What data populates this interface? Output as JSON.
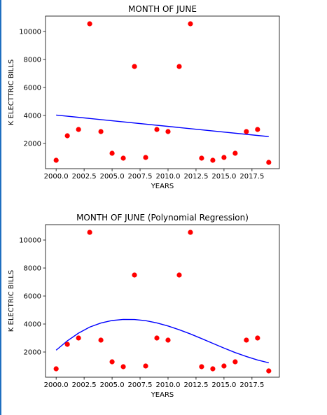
{
  "chart_data": [
    {
      "type": "scatter",
      "title": "MONTH OF JUNE",
      "xlabel": "YEARS",
      "ylabel": "K ELECTTRIC BILLS",
      "xlim": [
        1999.05,
        2019.95
      ],
      "ylim": [
        200,
        11100
      ],
      "xticks": [
        2000.0,
        2002.5,
        2005.0,
        2007.5,
        2010.0,
        2012.5,
        2015.0,
        2017.5
      ],
      "xtick_labels": [
        "2000.0",
        "2002.5",
        "2005.0",
        "2007.5",
        "2010.0",
        "2012.5",
        "2015.0",
        "2017.5"
      ],
      "yticks": [
        2000,
        4000,
        6000,
        8000,
        10000
      ],
      "ytick_labels": [
        "2000",
        "4000",
        "6000",
        "8000",
        "10000"
      ],
      "points": {
        "x": [
          2000,
          2001,
          2002,
          2003,
          2004,
          2005,
          2006,
          2007,
          2008,
          2009,
          2010,
          2011,
          2012,
          2013,
          2014,
          2015,
          2016,
          2017,
          2018,
          2019
        ],
        "y": [
          800,
          2550,
          3000,
          10550,
          2850,
          1300,
          950,
          7500,
          1000,
          3000,
          2850,
          7500,
          10550,
          950,
          800,
          1000,
          1300,
          2850,
          3000,
          650
        ]
      },
      "fit": {
        "kind": "linear",
        "x": [
          2000,
          2019
        ],
        "y": [
          4030,
          2490
        ]
      },
      "point_color": "#ff0000",
      "line_color": "#0000ff"
    },
    {
      "type": "scatter",
      "title": "MONTH OF JUNE (Polynomial Regression)",
      "xlabel": "YEARS",
      "ylabel": "K ELECTRIC BILLS",
      "xlim": [
        1999.05,
        2019.95
      ],
      "ylim": [
        200,
        11100
      ],
      "xticks": [
        2000.0,
        2002.5,
        2005.0,
        2007.5,
        2010.0,
        2012.5,
        2015.0,
        2017.5
      ],
      "xtick_labels": [
        "2000.0",
        "2002.5",
        "2005.0",
        "2007.5",
        "2010.0",
        "2012.5",
        "2015.0",
        "2017.5"
      ],
      "yticks": [
        2000,
        4000,
        6000,
        8000,
        10000
      ],
      "ytick_labels": [
        "2000",
        "4000",
        "6000",
        "8000",
        "10000"
      ],
      "points": {
        "x": [
          2000,
          2001,
          2002,
          2003,
          2004,
          2005,
          2006,
          2007,
          2008,
          2009,
          2010,
          2011,
          2012,
          2013,
          2014,
          2015,
          2016,
          2017,
          2018,
          2019
        ],
        "y": [
          800,
          2550,
          3000,
          10550,
          2850,
          1300,
          950,
          7500,
          1000,
          3000,
          2850,
          7500,
          10550,
          950,
          800,
          1000,
          1300,
          2850,
          3000,
          650
        ]
      },
      "fit": {
        "kind": "polynomial",
        "x": [
          2000,
          2001,
          2002,
          2003,
          2004,
          2005,
          2006,
          2007,
          2008,
          2009,
          2010,
          2011,
          2012,
          2013,
          2014,
          2015,
          2016,
          2017,
          2018,
          2019
        ],
        "y": [
          2130,
          2800,
          3350,
          3780,
          4070,
          4250,
          4330,
          4320,
          4240,
          4080,
          3860,
          3590,
          3290,
          2960,
          2620,
          2280,
          1960,
          1680,
          1430,
          1230
        ]
      },
      "point_color": "#ff0000",
      "line_color": "#0000ff"
    }
  ]
}
